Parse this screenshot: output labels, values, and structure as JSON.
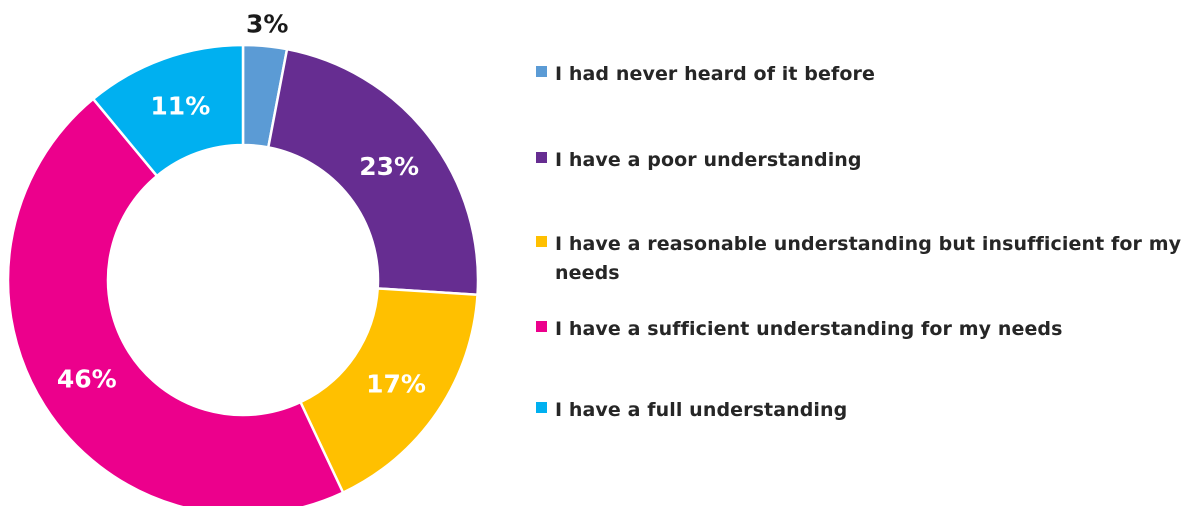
{
  "chart_data": {
    "type": "pie",
    "style": "donut",
    "categories": [
      "I had never heard of it before",
      "I have a poor understanding",
      "I have a reasonable understanding but insufficient for my needs",
      "I have a sufficient understanding for my needs",
      "I have a full understanding"
    ],
    "values": [
      3,
      23,
      17,
      46,
      11
    ],
    "data_labels": [
      "3%",
      "23%",
      "17%",
      "46%",
      "11%"
    ],
    "colors": [
      "#5B9BD5",
      "#662D91",
      "#FFC000",
      "#EC008C",
      "#00B0F0"
    ],
    "label_colors": [
      "#1a1a1a",
      "#ffffff",
      "#ffffff",
      "#ffffff",
      "#ffffff"
    ],
    "title": "",
    "legend_position": "right"
  }
}
